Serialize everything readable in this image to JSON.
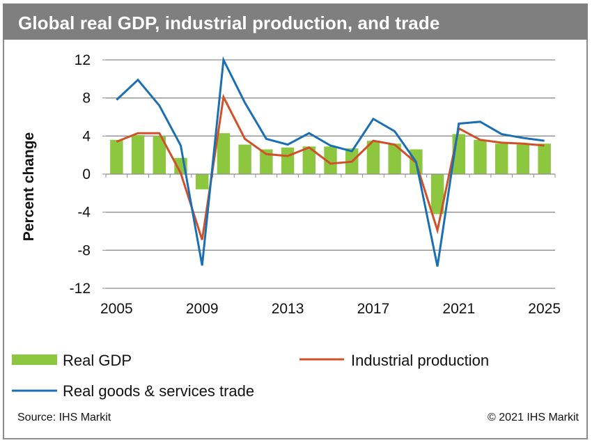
{
  "header": {
    "title": "Global real GDP, industrial production, and trade"
  },
  "footer": {
    "source": "Source: IHS Markit",
    "copyright": "© 2021 IHS Markit"
  },
  "colors": {
    "title_bar": "#7f7f7f",
    "gdp": "#8dc63f",
    "industrial": "#d0502a",
    "trade": "#1a6fb4",
    "grid": "#8c8c8c"
  },
  "chart_data": {
    "type": "bar",
    "title": "Global real GDP, industrial production, and trade",
    "xlabel": "",
    "ylabel": "Percent change",
    "ylim": [
      -12,
      12
    ],
    "yticks": [
      12,
      8,
      4,
      0,
      -4,
      -8,
      -12
    ],
    "ytick_labels": [
      "12",
      "8",
      "4",
      "0",
      "-4",
      "-8",
      "-12"
    ],
    "grid": true,
    "legend_position": "bottom",
    "categories": [
      "2005",
      "2006",
      "2007",
      "2008",
      "2009",
      "2010",
      "2011",
      "2012",
      "2013",
      "2014",
      "2015",
      "2016",
      "2017",
      "2018",
      "2019",
      "2020",
      "2021",
      "2022",
      "2023",
      "2024",
      "2025"
    ],
    "xtick_labels": [
      "2005",
      "2009",
      "2013",
      "2017",
      "2021",
      "2025"
    ],
    "series": [
      {
        "name": "Real GDP",
        "kind": "bar",
        "values": [
          3.6,
          4.1,
          4.0,
          1.7,
          -1.6,
          4.3,
          3.1,
          2.6,
          2.8,
          2.9,
          2.9,
          2.7,
          3.5,
          3.2,
          2.6,
          -4.2,
          4.2,
          3.6,
          3.2,
          3.1,
          3.2
        ]
      },
      {
        "name": "Industrial production",
        "kind": "line",
        "values": [
          3.4,
          4.3,
          4.3,
          0.1,
          -6.9,
          8.1,
          3.7,
          2.1,
          1.9,
          2.8,
          1.1,
          1.3,
          3.5,
          3.1,
          1.2,
          -5.9,
          4.8,
          3.6,
          3.3,
          3.2,
          3.0
        ]
      },
      {
        "name": "Real goods & services trade",
        "kind": "line",
        "values": [
          7.8,
          9.9,
          7.2,
          3.0,
          -9.6,
          12.0,
          7.5,
          3.7,
          3.1,
          4.3,
          3.0,
          2.4,
          5.8,
          4.5,
          1.3,
          -9.7,
          5.3,
          5.5,
          4.2,
          3.8,
          3.5
        ]
      }
    ]
  }
}
